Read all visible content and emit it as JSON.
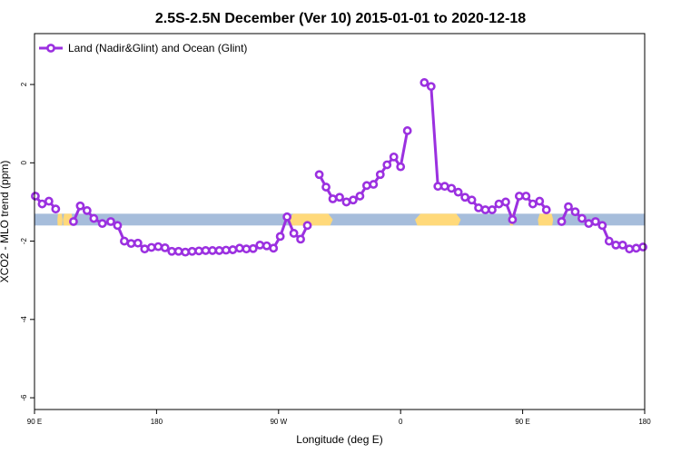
{
  "chart_data": {
    "type": "line",
    "title": "2.5S-2.5N December (Ver 10)   2015-01-01 to 2020-12-18",
    "xlabel": "Longitude (deg E)",
    "ylabel": "XCO2 - MLO trend (ppm)",
    "xlim": [
      90,
      450
    ],
    "ylim": [
      -6.3,
      3.3
    ],
    "x_ticks": [
      {
        "value": 90,
        "label": "90 E"
      },
      {
        "value": 162,
        "label": "180"
      },
      {
        "value": 234,
        "label": "90 W"
      },
      {
        "value": 306,
        "label": "0"
      },
      {
        "value": 378,
        "label": "90 E"
      },
      {
        "value": 450,
        "label": "180"
      }
    ],
    "y_ticks": [
      {
        "value": 2,
        "label": "2"
      },
      {
        "value": 0,
        "label": "0"
      },
      {
        "value": -2,
        "label": "-2"
      },
      {
        "value": -4,
        "label": "-4"
      },
      {
        "value": -6,
        "label": "-6"
      }
    ],
    "land_ocean_strip": {
      "y_range": [
        -1.6,
        -1.3
      ],
      "ocean_color": "#a6bddb",
      "land_color": "#ffd97a",
      "land_segments": [
        [
          103.5,
          106.5
        ],
        [
          106.8,
          112.5
        ],
        [
          239.5,
          266.0
        ],
        [
          314.5,
          341.5
        ],
        [
          370.5,
          372.5
        ],
        [
          387.0,
          396.0
        ]
      ]
    },
    "legend": {
      "position": "top-left",
      "entries": [
        "Land (Nadir&Glint) and Ocean (Glint)"
      ]
    },
    "series": [
      {
        "name": "Land (Nadir&Glint) and Ocean (Glint)",
        "color": "#9b30e0",
        "segments": [
          [
            [
              90.5,
              -0.85
            ],
            [
              94.5,
              -1.05
            ],
            [
              98.5,
              -0.98
            ],
            [
              102.5,
              -1.18
            ]
          ],
          [
            [
              113,
              -1.5
            ],
            [
              117,
              -1.1
            ],
            [
              121,
              -1.22
            ],
            [
              125,
              -1.42
            ],
            [
              130,
              -1.55
            ],
            [
              135,
              -1.5
            ],
            [
              139,
              -1.6
            ],
            [
              143,
              -2.0
            ],
            [
              147,
              -2.06
            ],
            [
              151,
              -2.05
            ],
            [
              155,
              -2.2
            ],
            [
              159,
              -2.16
            ],
            [
              163,
              -2.14
            ],
            [
              167,
              -2.17
            ],
            [
              171,
              -2.26
            ],
            [
              175,
              -2.26
            ],
            [
              179,
              -2.28
            ],
            [
              183,
              -2.26
            ],
            [
              187,
              -2.25
            ],
            [
              191,
              -2.24
            ],
            [
              195,
              -2.24
            ],
            [
              199,
              -2.24
            ],
            [
              203,
              -2.23
            ],
            [
              207,
              -2.22
            ],
            [
              211,
              -2.18
            ],
            [
              215,
              -2.2
            ],
            [
              219,
              -2.19
            ],
            [
              223,
              -2.1
            ],
            [
              227,
              -2.12
            ],
            [
              231,
              -2.18
            ],
            [
              235,
              -1.88
            ],
            [
              239,
              -1.38
            ],
            [
              243,
              -1.8
            ],
            [
              247,
              -1.95
            ],
            [
              251,
              -1.6
            ]
          ],
          [
            [
              258,
              -0.3
            ],
            [
              262,
              -0.62
            ],
            [
              266,
              -0.92
            ],
            [
              270,
              -0.88
            ],
            [
              274,
              -1.0
            ],
            [
              278,
              -0.95
            ],
            [
              282,
              -0.85
            ],
            [
              286,
              -0.58
            ],
            [
              290,
              -0.55
            ],
            [
              294,
              -0.3
            ],
            [
              298,
              -0.05
            ],
            [
              302,
              0.15
            ],
            [
              306,
              -0.1
            ],
            [
              310,
              0.82
            ]
          ],
          [
            [
              320,
              2.05
            ],
            [
              324,
              1.95
            ],
            [
              328,
              -0.6
            ],
            [
              332,
              -0.6
            ],
            [
              336,
              -0.65
            ],
            [
              340,
              -0.75
            ],
            [
              344,
              -0.88
            ],
            [
              348,
              -0.95
            ],
            [
              352,
              -1.15
            ],
            [
              356,
              -1.2
            ],
            [
              360,
              -1.2
            ],
            [
              364,
              -1.05
            ],
            [
              368,
              -1.0
            ],
            [
              372,
              -1.45
            ],
            [
              376,
              -0.85
            ],
            [
              380,
              -0.85
            ],
            [
              384,
              -1.05
            ],
            [
              388,
              -0.98
            ],
            [
              392,
              -1.2
            ]
          ],
          [
            [
              401,
              -1.5
            ],
            [
              405,
              -1.12
            ],
            [
              409,
              -1.25
            ],
            [
              413,
              -1.42
            ],
            [
              417,
              -1.55
            ],
            [
              421,
              -1.5
            ],
            [
              425,
              -1.6
            ],
            [
              429,
              -2.0
            ],
            [
              433,
              -2.1
            ],
            [
              437,
              -2.1
            ],
            [
              441,
              -2.2
            ],
            [
              445,
              -2.18
            ],
            [
              449,
              -2.15
            ]
          ]
        ]
      }
    ]
  }
}
